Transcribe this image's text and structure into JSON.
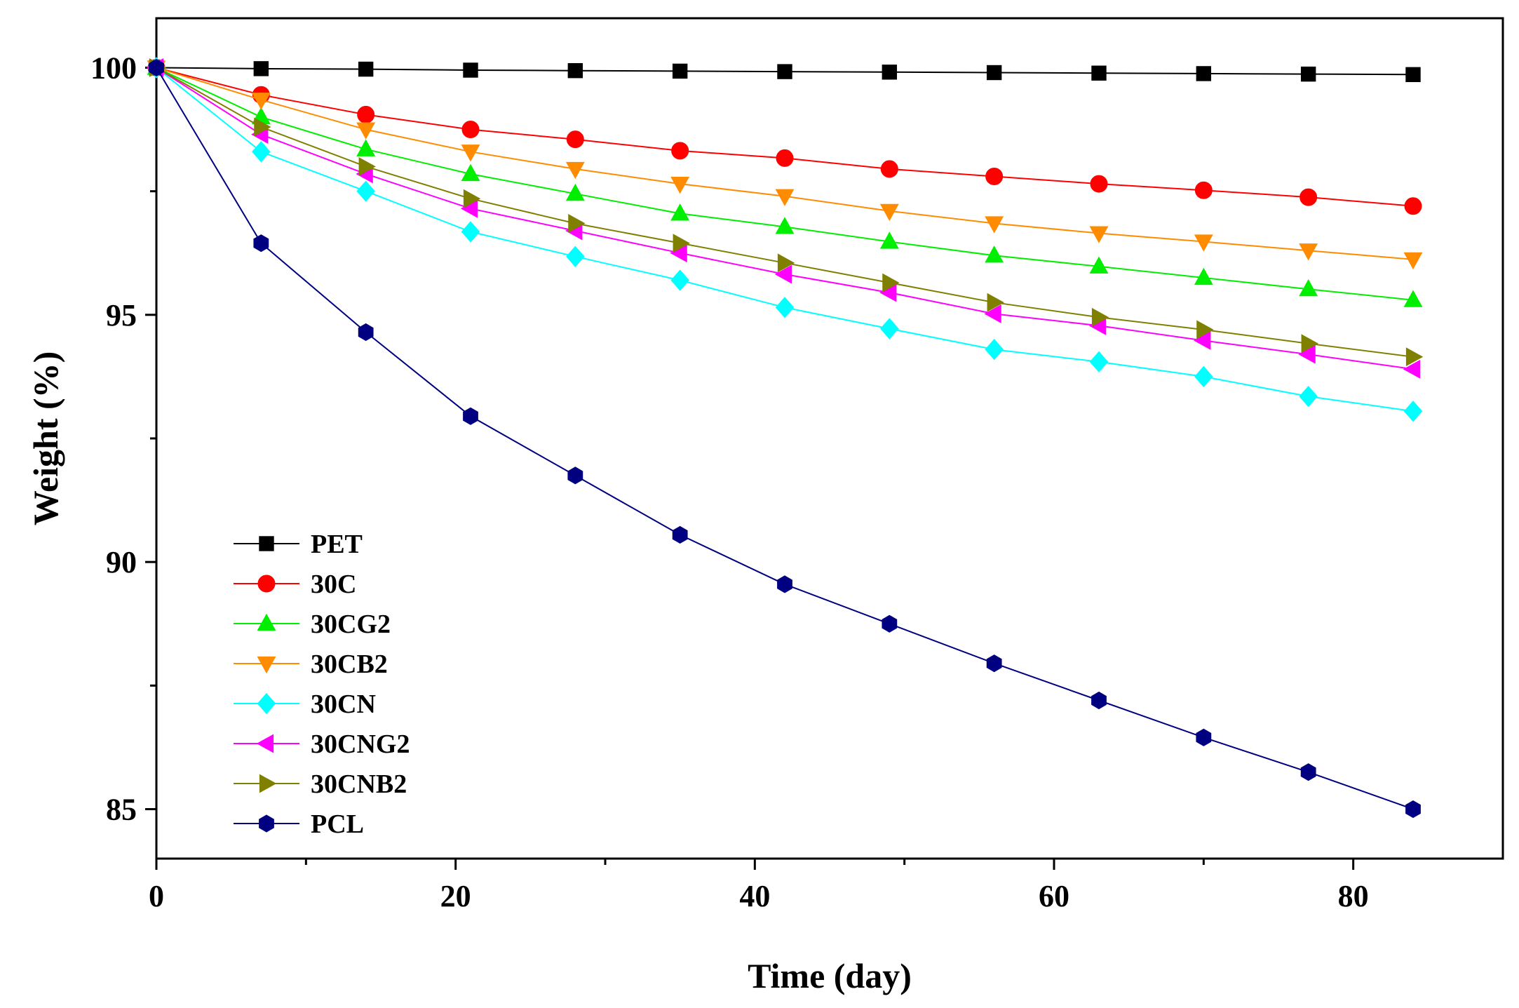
{
  "chart_data": {
    "type": "line",
    "xlabel": "Time (day)",
    "ylabel": "Weight (%)",
    "xlim": [
      0,
      90
    ],
    "ylim": [
      84,
      101
    ],
    "xticks": [
      0,
      20,
      40,
      60,
      80
    ],
    "yticks": [
      85,
      90,
      95,
      100
    ],
    "grid": false,
    "legend_position": "lower-left",
    "x": [
      0,
      7,
      14,
      21,
      28,
      35,
      42,
      49,
      56,
      63,
      70,
      77,
      84
    ],
    "series": [
      {
        "name": "PET",
        "color": "#000000",
        "marker": "square",
        "values": [
          100,
          99.98,
          99.97,
          99.95,
          99.94,
          99.93,
          99.92,
          99.91,
          99.9,
          99.89,
          99.88,
          99.87,
          99.86
        ]
      },
      {
        "name": "30C",
        "color": "#ff0000",
        "marker": "circle",
        "values": [
          100,
          99.45,
          99.05,
          98.75,
          98.55,
          98.32,
          98.17,
          97.95,
          97.8,
          97.65,
          97.52,
          97.38,
          97.2
        ]
      },
      {
        "name": "30CG2",
        "color": "#00ee00",
        "marker": "triangle-up",
        "values": [
          100,
          99.0,
          98.35,
          97.85,
          97.45,
          97.05,
          96.78,
          96.48,
          96.2,
          95.98,
          95.75,
          95.52,
          95.3
        ]
      },
      {
        "name": "30CB2",
        "color": "#ff8c00",
        "marker": "triangle-down",
        "values": [
          100,
          99.35,
          98.75,
          98.3,
          97.95,
          97.65,
          97.4,
          97.1,
          96.85,
          96.65,
          96.48,
          96.3,
          96.12
        ]
      },
      {
        "name": "30CN",
        "color": "#00ffff",
        "marker": "diamond",
        "values": [
          100,
          98.3,
          97.5,
          96.68,
          96.18,
          95.7,
          95.15,
          94.72,
          94.3,
          94.05,
          93.75,
          93.35,
          93.05
        ]
      },
      {
        "name": "30CNG2",
        "color": "#ff00ff",
        "marker": "triangle-left",
        "values": [
          100,
          98.65,
          97.85,
          97.15,
          96.7,
          96.25,
          95.82,
          95.45,
          95.02,
          94.78,
          94.48,
          94.2,
          93.9
        ]
      },
      {
        "name": "30CNB2",
        "color": "#808000",
        "marker": "triangle-right",
        "values": [
          100,
          98.8,
          98.0,
          97.35,
          96.85,
          96.45,
          96.05,
          95.65,
          95.25,
          94.95,
          94.7,
          94.42,
          94.15
        ]
      },
      {
        "name": "PCL",
        "color": "#000080",
        "marker": "hexagon",
        "values": [
          100,
          96.45,
          94.65,
          92.95,
          91.75,
          90.55,
          89.55,
          88.75,
          87.95,
          87.2,
          86.45,
          85.75,
          85.0
        ]
      }
    ]
  }
}
